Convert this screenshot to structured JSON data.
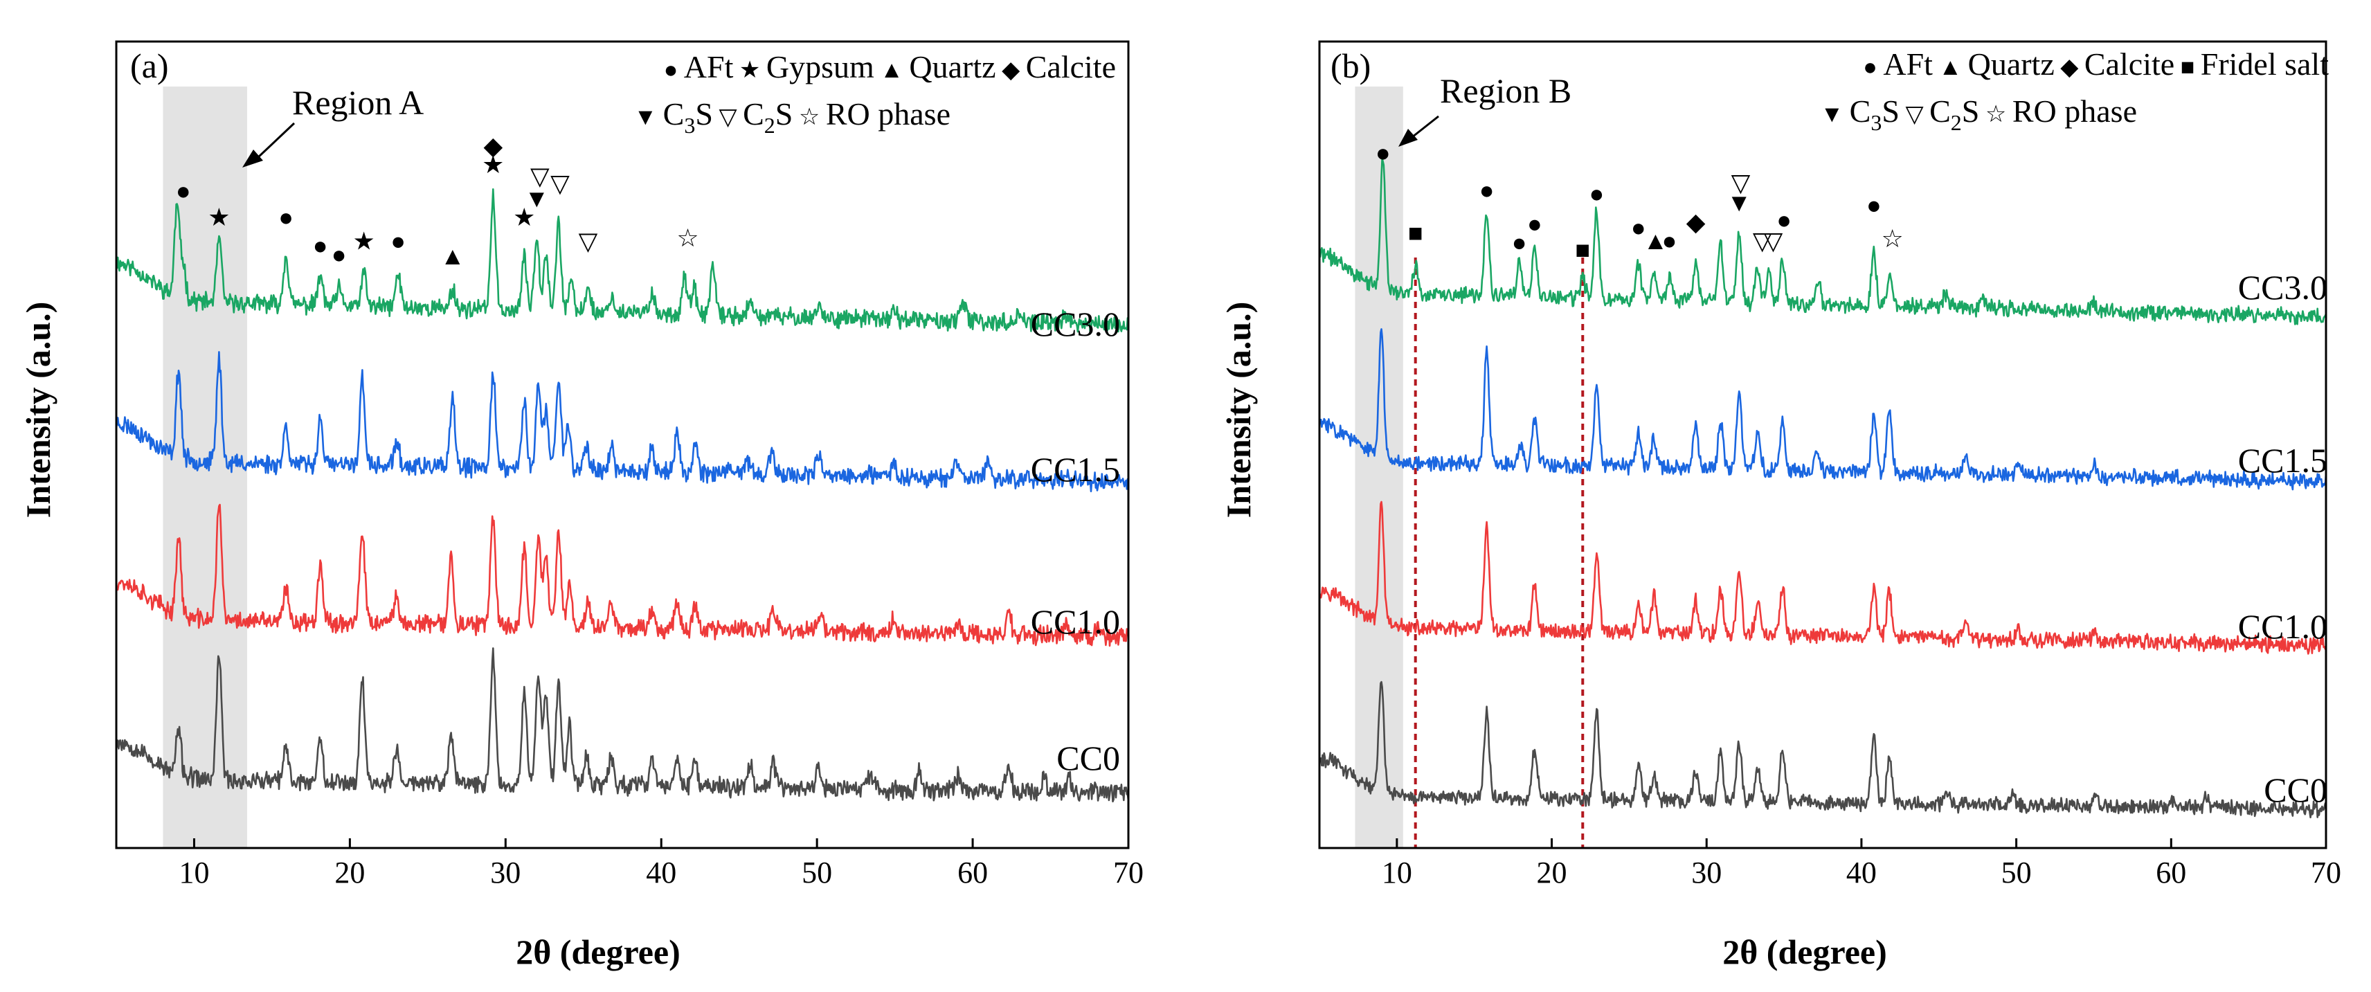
{
  "chart_data": [
    {
      "type": "line",
      "panel_label": "(a)",
      "title": "",
      "xlabel": "2θ (degree)",
      "ylabel": "Intensity (a.u.)",
      "xlim": [
        5,
        70
      ],
      "xticks": [
        10,
        20,
        30,
        40,
        50,
        60,
        70
      ],
      "xtick_labels": [
        "10",
        "20",
        "30",
        "40",
        "50",
        "60",
        "70"
      ],
      "grid": false,
      "legend_position": "top-right",
      "legend_rows": [
        [
          {
            "symbol": "●",
            "name": "AFt"
          },
          {
            "symbol": "★",
            "name": "Gypsum"
          },
          {
            "symbol": "▲",
            "name": "Quartz"
          },
          {
            "symbol": "◆",
            "name": "Calcite"
          }
        ],
        [
          {
            "symbol": "▼",
            "name": "C",
            "sub": "3",
            "tail": "S"
          },
          {
            "symbol": "▽",
            "name": "C",
            "sub": "2",
            "tail": "S"
          },
          {
            "symbol": "☆",
            "name": "RO phase"
          }
        ]
      ],
      "region": {
        "label": "Region A",
        "x_start": 8.0,
        "x_end": 13.4
      },
      "series": [
        {
          "name": "CC3.0",
          "color": "#1aa663",
          "baseline": 1.0,
          "peaks": [
            [
              8.9,
              1.1
            ],
            [
              9.3,
              0.4
            ],
            [
              11.6,
              0.78
            ],
            [
              15.9,
              0.6
            ],
            [
              18.1,
              0.35
            ],
            [
              19.3,
              0.2
            ],
            [
              20.9,
              0.4
            ],
            [
              23.1,
              0.4
            ],
            [
              26.6,
              0.24
            ],
            [
              29.2,
              1.35
            ],
            [
              31.2,
              0.62
            ],
            [
              32.0,
              0.9
            ],
            [
              32.6,
              0.7
            ],
            [
              33.4,
              1.05
            ],
            [
              34.2,
              0.35
            ],
            [
              35.3,
              0.3
            ],
            [
              36.8,
              0.2
            ],
            [
              39.4,
              0.25
            ],
            [
              41.5,
              0.45
            ],
            [
              42.1,
              0.3
            ],
            [
              43.3,
              0.58
            ],
            [
              45.7,
              0.15
            ],
            [
              50.1,
              0.15
            ],
            [
              55.0,
              0.12
            ],
            [
              59.4,
              0.22
            ],
            [
              63.0,
              0.14
            ],
            [
              65.9,
              0.12
            ]
          ],
          "slope": 0.55,
          "noise": 0.085,
          "seed": 11
        },
        {
          "name": "CC1.5",
          "color": "#1a66e0",
          "baseline": 3.0,
          "peaks": [
            [
              9.0,
              1.05
            ],
            [
              11.6,
              1.25
            ],
            [
              15.9,
              0.45
            ],
            [
              18.1,
              0.55
            ],
            [
              20.8,
              1.05
            ],
            [
              23.0,
              0.3
            ],
            [
              26.6,
              0.8
            ],
            [
              29.2,
              1.15
            ],
            [
              31.2,
              0.8
            ],
            [
              32.1,
              1.0
            ],
            [
              32.6,
              0.7
            ],
            [
              33.4,
              1.1
            ],
            [
              34.0,
              0.55
            ],
            [
              35.2,
              0.3
            ],
            [
              36.8,
              0.25
            ],
            [
              39.4,
              0.28
            ],
            [
              41.0,
              0.45
            ],
            [
              42.2,
              0.35
            ],
            [
              45.5,
              0.18
            ],
            [
              47.1,
              0.22
            ],
            [
              50.1,
              0.2
            ],
            [
              54.9,
              0.15
            ],
            [
              59.0,
              0.18
            ],
            [
              61.0,
              0.22
            ]
          ],
          "slope": 0.45,
          "noise": 0.09,
          "seed": 23
        },
        {
          "name": "CC1.0",
          "color": "#ee3a3a",
          "baseline": 5.0,
          "peaks": [
            [
              9.0,
              0.95
            ],
            [
              11.6,
              1.45
            ],
            [
              15.9,
              0.4
            ],
            [
              18.1,
              0.75
            ],
            [
              20.8,
              1.1
            ],
            [
              23.0,
              0.35
            ],
            [
              26.5,
              0.8
            ],
            [
              29.2,
              1.3
            ],
            [
              31.2,
              0.95
            ],
            [
              32.1,
              1.1
            ],
            [
              32.6,
              0.8
            ],
            [
              33.4,
              1.15
            ],
            [
              34.1,
              0.5
            ],
            [
              35.3,
              0.3
            ],
            [
              36.8,
              0.3
            ],
            [
              39.4,
              0.22
            ],
            [
              41.0,
              0.35
            ],
            [
              42.2,
              0.3
            ],
            [
              47.2,
              0.25
            ],
            [
              50.2,
              0.22
            ],
            [
              54.9,
              0.18
            ],
            [
              59.1,
              0.15
            ],
            [
              62.3,
              0.28
            ],
            [
              66.0,
              0.15
            ],
            [
              68.1,
              0.12
            ]
          ],
          "slope": 0.4,
          "noise": 0.09,
          "seed": 37
        },
        {
          "name": "CC0",
          "color": "#4a4a4a",
          "baseline": 7.0,
          "peaks": [
            [
              9.0,
              0.55
            ],
            [
              11.6,
              1.55
            ],
            [
              15.9,
              0.4
            ],
            [
              18.1,
              0.55
            ],
            [
              20.8,
              1.25
            ],
            [
              23.0,
              0.4
            ],
            [
              26.5,
              0.6
            ],
            [
              29.2,
              1.55
            ],
            [
              31.2,
              1.15
            ],
            [
              32.1,
              1.35
            ],
            [
              32.6,
              1.1
            ],
            [
              33.4,
              1.25
            ],
            [
              34.1,
              0.7
            ],
            [
              35.2,
              0.4
            ],
            [
              36.8,
              0.35
            ],
            [
              39.4,
              0.35
            ],
            [
              41.0,
              0.35
            ],
            [
              42.2,
              0.3
            ],
            [
              45.7,
              0.28
            ],
            [
              47.2,
              0.3
            ],
            [
              50.1,
              0.25
            ],
            [
              53.4,
              0.18
            ],
            [
              56.6,
              0.22
            ],
            [
              59.1,
              0.2
            ],
            [
              62.3,
              0.32
            ],
            [
              64.6,
              0.18
            ],
            [
              66.2,
              0.15
            ]
          ],
          "slope": 0.3,
          "noise": 0.09,
          "seed": 53
        }
      ],
      "annotations": [
        {
          "symbol": "●",
          "x": 9.3,
          "y": -0.45
        },
        {
          "symbol": "★",
          "x": 11.6,
          "y": -0.1
        },
        {
          "symbol": "●",
          "x": 15.9,
          "y": -0.1
        },
        {
          "symbol": "●",
          "x": 18.1,
          "y": 0.28
        },
        {
          "symbol": "●",
          "x": 19.3,
          "y": 0.4
        },
        {
          "symbol": "★",
          "x": 20.9,
          "y": 0.22
        },
        {
          "symbol": "●",
          "x": 23.1,
          "y": 0.22
        },
        {
          "symbol": "▲",
          "x": 26.6,
          "y": 0.42
        },
        {
          "symbol": "◆",
          "x": 29.2,
          "y": -1.05
        },
        {
          "symbol": "★",
          "x": 29.2,
          "y": -0.8
        },
        {
          "symbol": "★",
          "x": 31.2,
          "y": -0.1
        },
        {
          "symbol": "▼",
          "x": 32.0,
          "y": -0.35
        },
        {
          "symbol": "▽",
          "x": 32.2,
          "y": -0.65
        },
        {
          "symbol": "▽",
          "x": 33.5,
          "y": -0.55
        },
        {
          "symbol": "▽",
          "x": 35.3,
          "y": 0.22
        },
        {
          "symbol": "☆",
          "x": 41.7,
          "y": 0.18
        }
      ]
    },
    {
      "type": "line",
      "panel_label": "(b)",
      "title": "",
      "xlabel": "2θ (degree)",
      "ylabel": "Intensity (a.u.)",
      "xlim": [
        5,
        70
      ],
      "xticks": [
        10,
        20,
        30,
        40,
        50,
        60,
        70
      ],
      "xtick_labels": [
        "10",
        "20",
        "30",
        "40",
        "50",
        "60",
        "70"
      ],
      "grid": false,
      "legend_position": "top-right",
      "legend_rows": [
        [
          {
            "symbol": "●",
            "name": "AFt"
          },
          {
            "symbol": "▲",
            "name": "Quartz"
          },
          {
            "symbol": "◆",
            "name": "Calcite"
          },
          {
            "symbol": "■",
            "name": "Fridel salt"
          }
        ],
        [
          {
            "symbol": "▼",
            "name": "C",
            "sub": "3",
            "tail": "S"
          },
          {
            "symbol": "▽",
            "name": "C",
            "sub": "2",
            "tail": "S"
          },
          {
            "symbol": "☆",
            "name": "RO phase"
          }
        ]
      ],
      "region": {
        "label": "Region B",
        "x_start": 7.3,
        "x_end": 10.4
      },
      "reference_lines": [
        11.2,
        22.0
      ],
      "series": [
        {
          "name": "CC3.0",
          "color": "#1aa663",
          "baseline": 1.0,
          "peaks": [
            [
              9.1,
              1.55
            ],
            [
              11.2,
              0.35
            ],
            [
              15.8,
              1.0
            ],
            [
              17.9,
              0.4
            ],
            [
              18.9,
              0.6
            ],
            [
              22.0,
              0.25
            ],
            [
              22.9,
              1.05
            ],
            [
              25.6,
              0.45
            ],
            [
              26.6,
              0.35
            ],
            [
              27.6,
              0.3
            ],
            [
              29.3,
              0.45
            ],
            [
              30.9,
              0.7
            ],
            [
              32.1,
              0.8
            ],
            [
              33.3,
              0.45
            ],
            [
              34.0,
              0.4
            ],
            [
              34.9,
              0.55
            ],
            [
              37.2,
              0.3
            ],
            [
              40.8,
              0.65
            ],
            [
              41.8,
              0.4
            ],
            [
              45.4,
              0.15
            ],
            [
              47.9,
              0.12
            ],
            [
              55.0,
              0.1
            ]
          ],
          "slope": 0.55,
          "noise": 0.075,
          "seed": 71
        },
        {
          "name": "CC1.5",
          "color": "#1a66e0",
          "baseline": 3.0,
          "peaks": [
            [
              9.0,
              1.5
            ],
            [
              15.8,
              1.35
            ],
            [
              18.0,
              0.25
            ],
            [
              18.9,
              0.55
            ],
            [
              22.9,
              1.0
            ],
            [
              25.6,
              0.4
            ],
            [
              26.6,
              0.35
            ],
            [
              29.3,
              0.55
            ],
            [
              30.9,
              0.55
            ],
            [
              32.1,
              0.9
            ],
            [
              33.3,
              0.45
            ],
            [
              34.9,
              0.6
            ],
            [
              37.1,
              0.25
            ],
            [
              40.8,
              0.7
            ],
            [
              41.8,
              0.8
            ],
            [
              46.7,
              0.18
            ],
            [
              50.2,
              0.12
            ],
            [
              55.1,
              0.12
            ]
          ],
          "slope": 0.45,
          "noise": 0.075,
          "seed": 83
        },
        {
          "name": "CC1.0",
          "color": "#ee3a3a",
          "baseline": 5.0,
          "peaks": [
            [
              9.0,
              1.4
            ],
            [
              15.8,
              1.25
            ],
            [
              18.9,
              0.55
            ],
            [
              22.9,
              0.95
            ],
            [
              25.6,
              0.35
            ],
            [
              26.6,
              0.45
            ],
            [
              29.3,
              0.4
            ],
            [
              30.9,
              0.55
            ],
            [
              32.1,
              0.75
            ],
            [
              33.3,
              0.4
            ],
            [
              34.9,
              0.55
            ],
            [
              40.8,
              0.6
            ],
            [
              41.8,
              0.55
            ],
            [
              46.7,
              0.18
            ],
            [
              50.1,
              0.12
            ],
            [
              55.1,
              0.12
            ]
          ],
          "slope": 0.4,
          "noise": 0.075,
          "seed": 97
        },
        {
          "name": "CC0",
          "color": "#4a4a4a",
          "baseline": 7.0,
          "peaks": [
            [
              9.0,
              1.4
            ],
            [
              15.8,
              1.05
            ],
            [
              18.9,
              0.6
            ],
            [
              22.9,
              1.05
            ],
            [
              25.6,
              0.4
            ],
            [
              26.6,
              0.3
            ],
            [
              29.3,
              0.35
            ],
            [
              30.9,
              0.6
            ],
            [
              32.1,
              0.7
            ],
            [
              33.3,
              0.4
            ],
            [
              34.9,
              0.65
            ],
            [
              40.8,
              0.8
            ],
            [
              41.8,
              0.55
            ],
            [
              45.5,
              0.15
            ],
            [
              49.7,
              0.15
            ],
            [
              55.1,
              0.12
            ],
            [
              60.0,
              0.1
            ],
            [
              62.3,
              0.12
            ]
          ],
          "slope": 0.3,
          "noise": 0.07,
          "seed": 113
        }
      ],
      "annotations": [
        {
          "symbol": "●",
          "x": 9.1,
          "y": -0.85
        },
        {
          "symbol": "■",
          "x": 11.2,
          "y": 0.22
        },
        {
          "symbol": "●",
          "x": 15.8,
          "y": -0.35
        },
        {
          "symbol": "●",
          "x": 17.9,
          "y": 0.35
        },
        {
          "symbol": "●",
          "x": 18.9,
          "y": 0.1
        },
        {
          "symbol": "■",
          "x": 22.0,
          "y": 0.45
        },
        {
          "symbol": "●",
          "x": 22.9,
          "y": -0.3
        },
        {
          "symbol": "●",
          "x": 25.6,
          "y": 0.15
        },
        {
          "symbol": "▲",
          "x": 26.7,
          "y": 0.33
        },
        {
          "symbol": "●",
          "x": 27.6,
          "y": 0.33
        },
        {
          "symbol": "◆",
          "x": 29.3,
          "y": 0.08
        },
        {
          "symbol": "▼",
          "x": 32.1,
          "y": -0.18
        },
        {
          "symbol": "▽",
          "x": 32.2,
          "y": -0.45
        },
        {
          "symbol": "▽",
          "x": 33.6,
          "y": 0.33
        },
        {
          "symbol": "▽",
          "x": 34.3,
          "y": 0.33
        },
        {
          "symbol": "●",
          "x": 35.0,
          "y": 0.05
        },
        {
          "symbol": "●",
          "x": 40.8,
          "y": -0.15
        },
        {
          "symbol": "☆",
          "x": 42.0,
          "y": 0.3
        }
      ]
    }
  ]
}
